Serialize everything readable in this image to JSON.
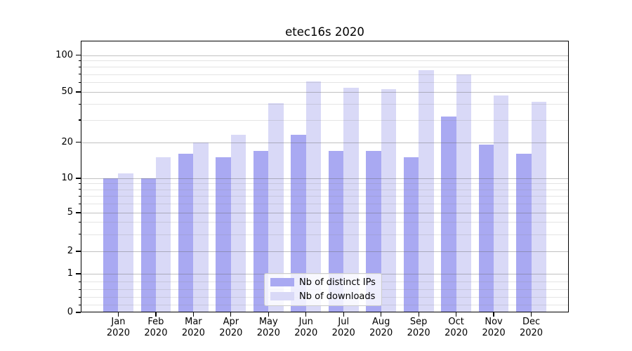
{
  "title": "etec16s 2020",
  "chart_data": {
    "type": "bar",
    "title": "etec16s 2020",
    "categories": [
      "Jan 2020",
      "Feb 2020",
      "Mar 2020",
      "Apr 2020",
      "May 2020",
      "Jun 2020",
      "Jul 2020",
      "Aug 2020",
      "Sep 2020",
      "Oct 2020",
      "Nov 2020",
      "Dec 2020"
    ],
    "series": [
      {
        "name": "Nb of distinct IPs",
        "color": "#a9a9f2",
        "values": [
          10,
          10,
          16,
          15,
          17,
          23,
          17,
          17,
          15,
          32,
          19,
          16
        ]
      },
      {
        "name": "Nb of downloads",
        "color": "#d9d9f7",
        "values": [
          11,
          15,
          20,
          23,
          41,
          61,
          54,
          53,
          75,
          70,
          47,
          42
        ]
      }
    ],
    "xlabel": "",
    "ylabel": "",
    "yscale": "symlog",
    "ylim": [
      0,
      130
    ],
    "y_tick_labels": [
      0,
      1,
      2,
      5,
      10,
      20,
      50,
      100
    ],
    "y_minor_gridlines": [
      0.2,
      0.4,
      0.6,
      0.8,
      3,
      4,
      6,
      7,
      8,
      9,
      30,
      40,
      60,
      70,
      80,
      90
    ],
    "grid": true,
    "legend_position": "lower center"
  }
}
